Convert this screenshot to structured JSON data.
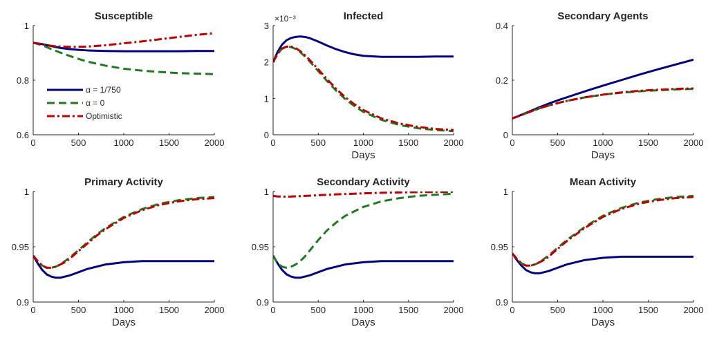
{
  "colors": {
    "alpha_1_750": "#000080",
    "alpha_0": "#1f7a1f",
    "optimistic": "#bf0000",
    "axis": "#262626"
  },
  "legend": {
    "entries": [
      {
        "name": "α = 1/750",
        "color": "#000080",
        "dash": "solid"
      },
      {
        "name": "α = 0",
        "color": "#1f7a1f",
        "dash": "dashed"
      },
      {
        "name": "Optimistic",
        "color": "#bf0000",
        "dash": "dashdot"
      }
    ]
  },
  "chart_data": [
    {
      "type": "line",
      "title": "Susceptible",
      "xlabel": "",
      "ylabel": "",
      "xlim": [
        0,
        2000
      ],
      "ylim": [
        0.6,
        1
      ],
      "xticks": [
        0,
        500,
        1000,
        1500,
        2000
      ],
      "yticks": [
        0.6,
        0.8,
        1
      ],
      "ytick_labels": [
        "0.6",
        "0.8",
        "1"
      ],
      "legend": "upper-left-inside",
      "x": [
        0,
        100,
        200,
        300,
        400,
        500,
        600,
        800,
        1000,
        1200,
        1400,
        1600,
        1800,
        2000
      ],
      "series": [
        {
          "name": "α = 1/750",
          "values": [
            0.937,
            0.932,
            0.925,
            0.918,
            0.914,
            0.911,
            0.909,
            0.907,
            0.906,
            0.906,
            0.906,
            0.906,
            0.907,
            0.907
          ]
        },
        {
          "name": "α = 0",
          "values": [
            0.937,
            0.928,
            0.914,
            0.901,
            0.889,
            0.878,
            0.868,
            0.853,
            0.842,
            0.835,
            0.83,
            0.826,
            0.824,
            0.822
          ]
        },
        {
          "name": "Optimistic",
          "values": [
            0.937,
            0.931,
            0.926,
            0.923,
            0.922,
            0.922,
            0.923,
            0.928,
            0.935,
            0.942,
            0.95,
            0.958,
            0.966,
            0.972
          ]
        }
      ]
    },
    {
      "type": "line",
      "title": "Infected",
      "xlabel": "Days",
      "ylabel": "",
      "xlim": [
        0,
        2000
      ],
      "ylim": [
        0,
        3
      ],
      "xticks": [
        0,
        500,
        1000,
        1500,
        2000
      ],
      "yticks": [
        0,
        1,
        2,
        3
      ],
      "ytick_labels": [
        "0",
        "1",
        "2",
        "3"
      ],
      "y_exponent": "×10⁻³",
      "x": [
        0,
        50,
        100,
        150,
        200,
        250,
        300,
        350,
        400,
        500,
        600,
        700,
        800,
        900,
        1000,
        1200,
        1400,
        1600,
        1800,
        2000
      ],
      "series": [
        {
          "name": "α = 1/750",
          "values": [
            2.0,
            2.28,
            2.48,
            2.6,
            2.66,
            2.69,
            2.7,
            2.69,
            2.66,
            2.56,
            2.45,
            2.35,
            2.27,
            2.21,
            2.17,
            2.14,
            2.14,
            2.14,
            2.15,
            2.15
          ]
        },
        {
          "name": "α = 0",
          "values": [
            2.0,
            2.22,
            2.37,
            2.42,
            2.41,
            2.36,
            2.27,
            2.16,
            2.03,
            1.75,
            1.47,
            1.21,
            0.98,
            0.79,
            0.63,
            0.41,
            0.27,
            0.18,
            0.13,
            0.1
          ]
        },
        {
          "name": "Optimistic",
          "values": [
            2.0,
            2.22,
            2.37,
            2.42,
            2.42,
            2.38,
            2.3,
            2.19,
            2.07,
            1.8,
            1.52,
            1.26,
            1.03,
            0.84,
            0.68,
            0.45,
            0.31,
            0.22,
            0.16,
            0.13
          ]
        }
      ]
    },
    {
      "type": "line",
      "title": "Secondary Agents",
      "xlabel": "Days",
      "ylabel": "",
      "xlim": [
        0,
        2000
      ],
      "ylim": [
        0,
        0.4
      ],
      "xticks": [
        0,
        500,
        1000,
        1500,
        2000
      ],
      "yticks": [
        0,
        0.2,
        0.4
      ],
      "ytick_labels": [
        "0",
        "0.2",
        "0.4"
      ],
      "x": [
        0,
        100,
        200,
        300,
        400,
        500,
        600,
        800,
        1000,
        1200,
        1400,
        1600,
        1800,
        2000
      ],
      "series": [
        {
          "name": "α = 1/750",
          "values": [
            0.06,
            0.073,
            0.087,
            0.101,
            0.114,
            0.126,
            0.137,
            0.159,
            0.18,
            0.2,
            0.22,
            0.239,
            0.257,
            0.275
          ]
        },
        {
          "name": "α = 0",
          "values": [
            0.06,
            0.072,
            0.085,
            0.097,
            0.107,
            0.116,
            0.124,
            0.137,
            0.147,
            0.154,
            0.159,
            0.163,
            0.166,
            0.168
          ]
        },
        {
          "name": "Optimistic",
          "values": [
            0.06,
            0.072,
            0.085,
            0.097,
            0.107,
            0.116,
            0.124,
            0.137,
            0.147,
            0.155,
            0.161,
            0.165,
            0.168,
            0.17
          ]
        }
      ]
    },
    {
      "type": "line",
      "title": "Primary Activity",
      "xlabel": "Days",
      "ylabel": "",
      "xlim": [
        0,
        2000
      ],
      "ylim": [
        0.9,
        1
      ],
      "xticks": [
        0,
        500,
        1000,
        1500,
        2000
      ],
      "yticks": [
        0.9,
        0.95,
        1
      ],
      "ytick_labels": [
        "0.9",
        "0.95",
        "1"
      ],
      "x": [
        0,
        50,
        100,
        150,
        200,
        250,
        300,
        350,
        400,
        500,
        600,
        700,
        800,
        1000,
        1200,
        1400,
        1600,
        1800,
        2000
      ],
      "series": [
        {
          "name": "α = 1/750",
          "values": [
            0.942,
            0.935,
            0.929,
            0.925,
            0.923,
            0.922,
            0.922,
            0.923,
            0.924,
            0.927,
            0.93,
            0.932,
            0.934,
            0.936,
            0.937,
            0.937,
            0.937,
            0.937,
            0.937
          ]
        },
        {
          "name": "α = 0",
          "values": [
            0.942,
            0.937,
            0.933,
            0.931,
            0.931,
            0.932,
            0.934,
            0.937,
            0.94,
            0.947,
            0.954,
            0.961,
            0.967,
            0.977,
            0.984,
            0.989,
            0.992,
            0.994,
            0.995
          ]
        },
        {
          "name": "Optimistic",
          "values": [
            0.942,
            0.937,
            0.933,
            0.931,
            0.931,
            0.932,
            0.934,
            0.936,
            0.939,
            0.946,
            0.953,
            0.96,
            0.966,
            0.976,
            0.983,
            0.988,
            0.991,
            0.993,
            0.994
          ]
        }
      ]
    },
    {
      "type": "line",
      "title": "Secondary Activity",
      "xlabel": "Days",
      "ylabel": "",
      "xlim": [
        0,
        2000
      ],
      "ylim": [
        0.9,
        1
      ],
      "xticks": [
        0,
        500,
        1000,
        1500,
        2000
      ],
      "yticks": [
        0.9,
        0.95,
        1
      ],
      "ytick_labels": [
        "0.9",
        "0.95",
        "1"
      ],
      "x": [
        0,
        50,
        100,
        150,
        200,
        250,
        300,
        350,
        400,
        500,
        600,
        700,
        800,
        1000,
        1200,
        1400,
        1600,
        1800,
        2000
      ],
      "series": [
        {
          "name": "α = 1/750",
          "values": [
            0.942,
            0.935,
            0.929,
            0.925,
            0.923,
            0.922,
            0.922,
            0.923,
            0.924,
            0.927,
            0.93,
            0.932,
            0.934,
            0.936,
            0.937,
            0.937,
            0.937,
            0.937,
            0.937
          ]
        },
        {
          "name": "α = 0",
          "values": [
            0.942,
            0.935,
            0.932,
            0.931,
            0.932,
            0.934,
            0.937,
            0.941,
            0.946,
            0.956,
            0.965,
            0.972,
            0.978,
            0.986,
            0.991,
            0.994,
            0.996,
            0.997,
            0.998
          ]
        },
        {
          "name": "Optimistic",
          "values": [
            0.996,
            0.9955,
            0.9953,
            0.9953,
            0.9954,
            0.9956,
            0.9958,
            0.996,
            0.9962,
            0.9966,
            0.997,
            0.9974,
            0.9977,
            0.9983,
            0.9988,
            0.9991,
            0.9994,
            0.9996,
            0.9997
          ]
        }
      ]
    },
    {
      "type": "line",
      "title": "Mean Activity",
      "xlabel": "Days",
      "ylabel": "",
      "xlim": [
        0,
        2000
      ],
      "ylim": [
        0.9,
        1
      ],
      "xticks": [
        0,
        500,
        1000,
        1500,
        2000
      ],
      "yticks": [
        0.9,
        0.95,
        1
      ],
      "ytick_labels": [
        "0.9",
        "0.95",
        "1"
      ],
      "x": [
        0,
        50,
        100,
        150,
        200,
        250,
        300,
        350,
        400,
        500,
        600,
        700,
        800,
        1000,
        1200,
        1400,
        1600,
        1800,
        2000
      ],
      "series": [
        {
          "name": "α = 1/750",
          "values": [
            0.944,
            0.938,
            0.933,
            0.929,
            0.927,
            0.926,
            0.926,
            0.927,
            0.928,
            0.931,
            0.934,
            0.936,
            0.938,
            0.94,
            0.941,
            0.941,
            0.941,
            0.941,
            0.941
          ]
        },
        {
          "name": "α = 0",
          "values": [
            0.944,
            0.939,
            0.935,
            0.933,
            0.933,
            0.934,
            0.936,
            0.939,
            0.942,
            0.949,
            0.956,
            0.962,
            0.968,
            0.978,
            0.985,
            0.99,
            0.993,
            0.995,
            0.996
          ]
        },
        {
          "name": "Optimistic",
          "values": [
            0.944,
            0.939,
            0.935,
            0.933,
            0.933,
            0.934,
            0.936,
            0.938,
            0.941,
            0.948,
            0.955,
            0.961,
            0.967,
            0.977,
            0.984,
            0.989,
            0.992,
            0.994,
            0.995
          ]
        }
      ]
    }
  ]
}
